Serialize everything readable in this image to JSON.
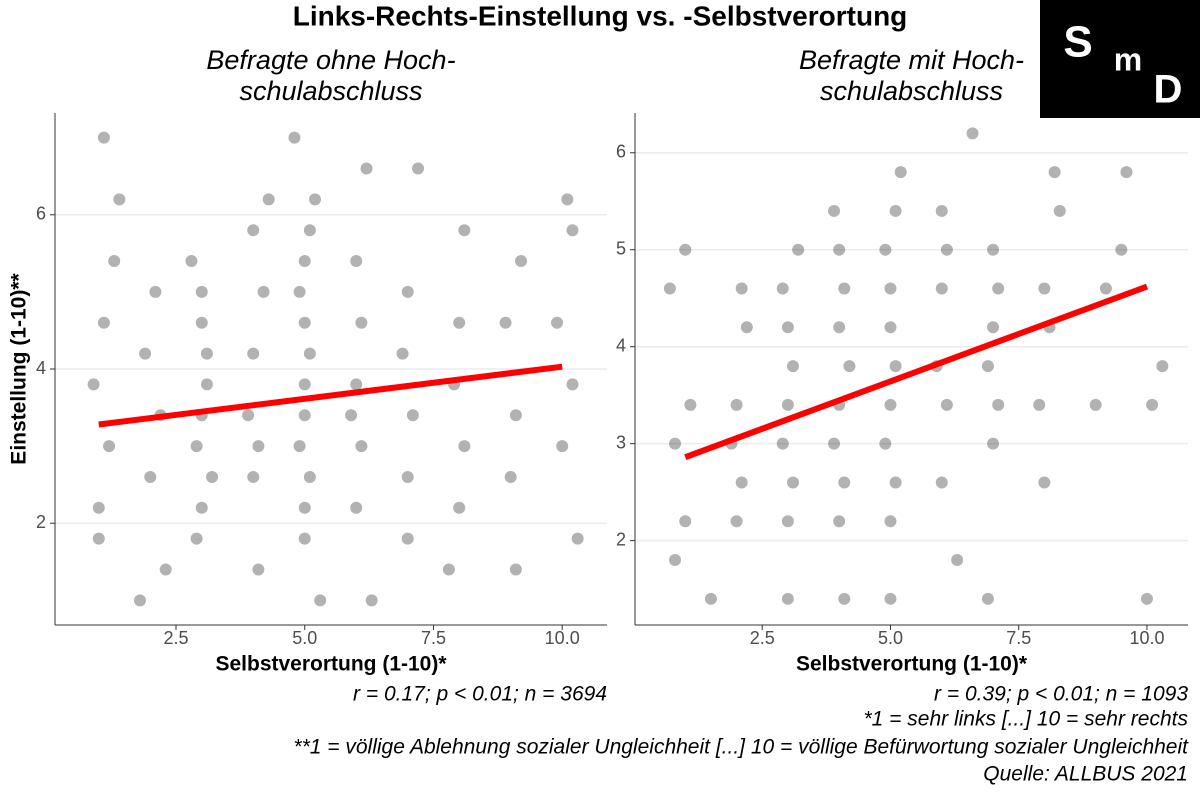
{
  "title": "Links-Rechts-Einstellung vs. -Selbstverortung",
  "logo": [
    "S",
    "m",
    "D"
  ],
  "footnotes": [
    "*1 = sehr links [...] 10 = sehr rechts",
    "**1 = völlige Ablehnung sozialer Ungleichheit [...] 10 = völlige Befürwortung sozialer Ungleichheit",
    "Quelle: ALLBUS 2021"
  ],
  "chart_data": [
    {
      "type": "scatter",
      "subtitle": [
        "Befragte ohne Hoch-",
        "schulabschluss"
      ],
      "x_label": "Selbstverortung (1-10)*",
      "y_label": "Einstellung (1-10)**",
      "stats": "r = 0.17; p < 0.01; n = 3694",
      "xlim": [
        0.15,
        10.87
      ],
      "ylim": [
        0.68,
        7.32
      ],
      "xticks": [
        {
          "value": 2.5,
          "label": "2.5"
        },
        {
          "value": 5,
          "label": "5.0"
        },
        {
          "value": 7.5,
          "label": "7.5"
        },
        {
          "value": 10,
          "label": "10.0"
        }
      ],
      "yticks": [
        2,
        4,
        6
      ],
      "grid": true,
      "color": "#000000",
      "x": [
        1.0,
        1.2,
        0.9,
        1.1,
        1.3,
        1.1,
        1.4,
        1.0,
        2.0,
        2.2,
        1.9,
        2.1,
        2.3,
        1.8,
        3.0,
        2.9,
        3.1,
        3.0,
        2.8,
        3.2,
        3.0,
        3.1,
        3.0,
        2.9,
        4.0,
        4.1,
        3.9,
        4.0,
        4.2,
        4.0,
        4.3,
        4.1,
        5.0,
        5.0,
        5.1,
        4.9,
        5.0,
        5.0,
        5.1,
        5.0,
        4.9,
        5.0,
        5.1,
        5.2,
        4.8,
        5.3,
        6.0,
        6.1,
        5.9,
        6.0,
        6.1,
        6.0,
        6.2,
        6.3,
        7.0,
        7.1,
        6.9,
        7.0,
        7.2,
        7.0,
        8.0,
        8.1,
        7.9,
        8.0,
        8.1,
        7.8,
        9.0,
        9.1,
        8.9,
        9.2,
        9.1,
        10.0,
        10.2,
        9.9,
        10.1,
        10.3,
        10.2
      ],
      "y": [
        2.2,
        3.0,
        3.8,
        4.6,
        5.4,
        7.0,
        6.2,
        1.8,
        2.6,
        3.4,
        4.2,
        5.0,
        1.4,
        1.0,
        2.2,
        3.0,
        3.8,
        4.6,
        5.4,
        2.6,
        3.4,
        4.2,
        5.0,
        1.8,
        2.6,
        3.0,
        3.4,
        4.2,
        5.0,
        5.8,
        6.2,
        1.4,
        1.8,
        2.2,
        2.6,
        3.0,
        3.4,
        3.8,
        4.2,
        4.6,
        5.0,
        5.4,
        5.8,
        6.2,
        7.0,
        1.0,
        2.2,
        3.0,
        3.4,
        3.8,
        4.6,
        5.4,
        6.6,
        1.0,
        2.6,
        3.4,
        4.2,
        5.0,
        6.6,
        1.8,
        2.2,
        3.0,
        3.8,
        4.6,
        5.8,
        1.4,
        2.6,
        3.4,
        4.6,
        5.4,
        1.4,
        3.0,
        3.8,
        4.6,
        6.2,
        1.8,
        5.8
      ],
      "fit": {
        "x": [
          1,
          10
        ],
        "y": [
          3.28,
          4.03
        ],
        "color": "#ff0000"
      }
    },
    {
      "type": "scatter",
      "subtitle": [
        "Befragte mit Hoch-",
        "schulabschluss"
      ],
      "x_label": "Selbstverortung (1-10)*",
      "stats": "r = 0.39; p < 0.01; n = 1093",
      "xlim": [
        0.02,
        10.8
      ],
      "ylim": [
        1.13,
        6.41
      ],
      "xticks": [
        {
          "value": 2.5,
          "label": "2.5"
        },
        {
          "value": 5,
          "label": "5.0"
        },
        {
          "value": 7.5,
          "label": "7.5"
        },
        {
          "value": 10,
          "label": "10.0"
        }
      ],
      "yticks": [
        2,
        3,
        4,
        5,
        6
      ],
      "grid": true,
      "color": "#000000",
      "x": [
        1.0,
        0.8,
        1.1,
        0.7,
        1.0,
        0.8,
        2.0,
        2.1,
        1.9,
        2.0,
        2.2,
        2.1,
        1.5,
        3.0,
        3.1,
        2.9,
        3.0,
        3.1,
        3.0,
        2.9,
        3.2,
        3.0,
        4.0,
        4.1,
        3.9,
        4.0,
        4.2,
        4.0,
        4.1,
        4.0,
        3.9,
        4.1,
        5.0,
        5.1,
        4.9,
        5.0,
        5.1,
        5.0,
        5.0,
        4.9,
        5.1,
        5.2,
        5.0,
        6.0,
        6.1,
        5.9,
        6.0,
        6.1,
        6.0,
        6.6,
        6.3,
        7.0,
        7.1,
        6.9,
        7.0,
        7.1,
        7.0,
        6.9,
        8.0,
        7.9,
        8.1,
        8.0,
        8.2,
        8.3,
        9.0,
        9.2,
        9.6,
        9.5,
        10.0,
        10.1,
        10.3
      ],
      "y": [
        2.2,
        3.0,
        3.4,
        4.6,
        5.0,
        1.8,
        2.2,
        2.6,
        3.0,
        3.4,
        4.2,
        4.6,
        1.4,
        2.2,
        2.6,
        3.0,
        3.4,
        3.8,
        4.2,
        4.6,
        5.0,
        1.4,
        2.2,
        2.6,
        3.0,
        3.4,
        3.8,
        4.2,
        4.6,
        5.0,
        5.4,
        1.4,
        2.2,
        2.6,
        3.0,
        3.4,
        3.8,
        4.2,
        4.6,
        5.0,
        5.4,
        5.8,
        1.4,
        2.6,
        3.4,
        3.8,
        4.6,
        5.0,
        5.4,
        6.2,
        1.8,
        3.0,
        3.4,
        3.8,
        4.2,
        4.6,
        5.0,
        1.4,
        2.6,
        3.4,
        4.2,
        4.6,
        5.8,
        5.4,
        3.4,
        4.6,
        5.8,
        5.0,
        1.4,
        3.4,
        3.8
      ],
      "fit": {
        "x": [
          1,
          10
        ],
        "y": [
          2.86,
          4.62
        ],
        "color": "#ff0000"
      }
    }
  ]
}
